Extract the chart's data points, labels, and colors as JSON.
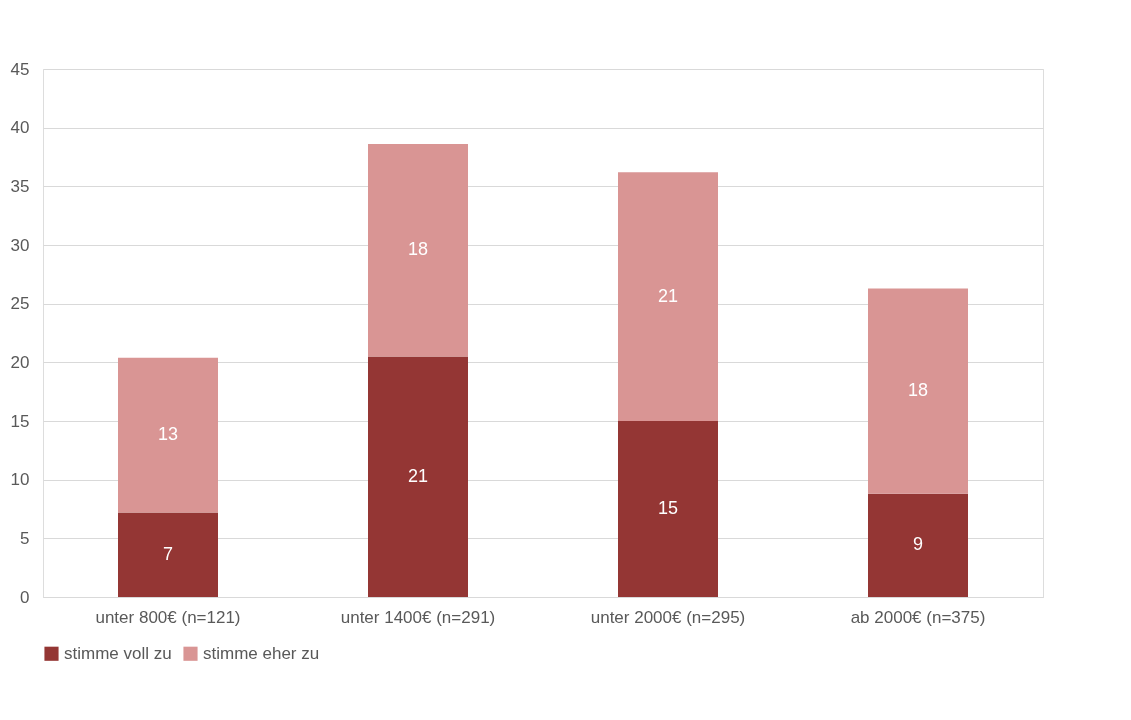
{
  "chart_data": {
    "type": "bar",
    "stacked": true,
    "categories": [
      "unter 800€ (n=121)",
      "unter 1400€ (n=291)",
      "unter 2000€ (n=295)",
      "ab 2000€ (n=375)"
    ],
    "series": [
      {
        "name": "stimme voll zu",
        "color": "#943634",
        "values": [
          7.2,
          20.5,
          15.0,
          8.8
        ],
        "value_labels": [
          "7",
          "21",
          "15",
          "9"
        ]
      },
      {
        "name": "stimme eher zu",
        "color": "#d99594",
        "values": [
          13.2,
          18.1,
          21.2,
          17.5
        ],
        "value_labels": [
          "13",
          "18",
          "21",
          "18"
        ]
      }
    ],
    "ylim": [
      0,
      45
    ],
    "yticks": [
      0,
      5,
      10,
      15,
      20,
      25,
      30,
      35,
      40,
      45
    ],
    "grid": "y",
    "legend": "bottom"
  }
}
